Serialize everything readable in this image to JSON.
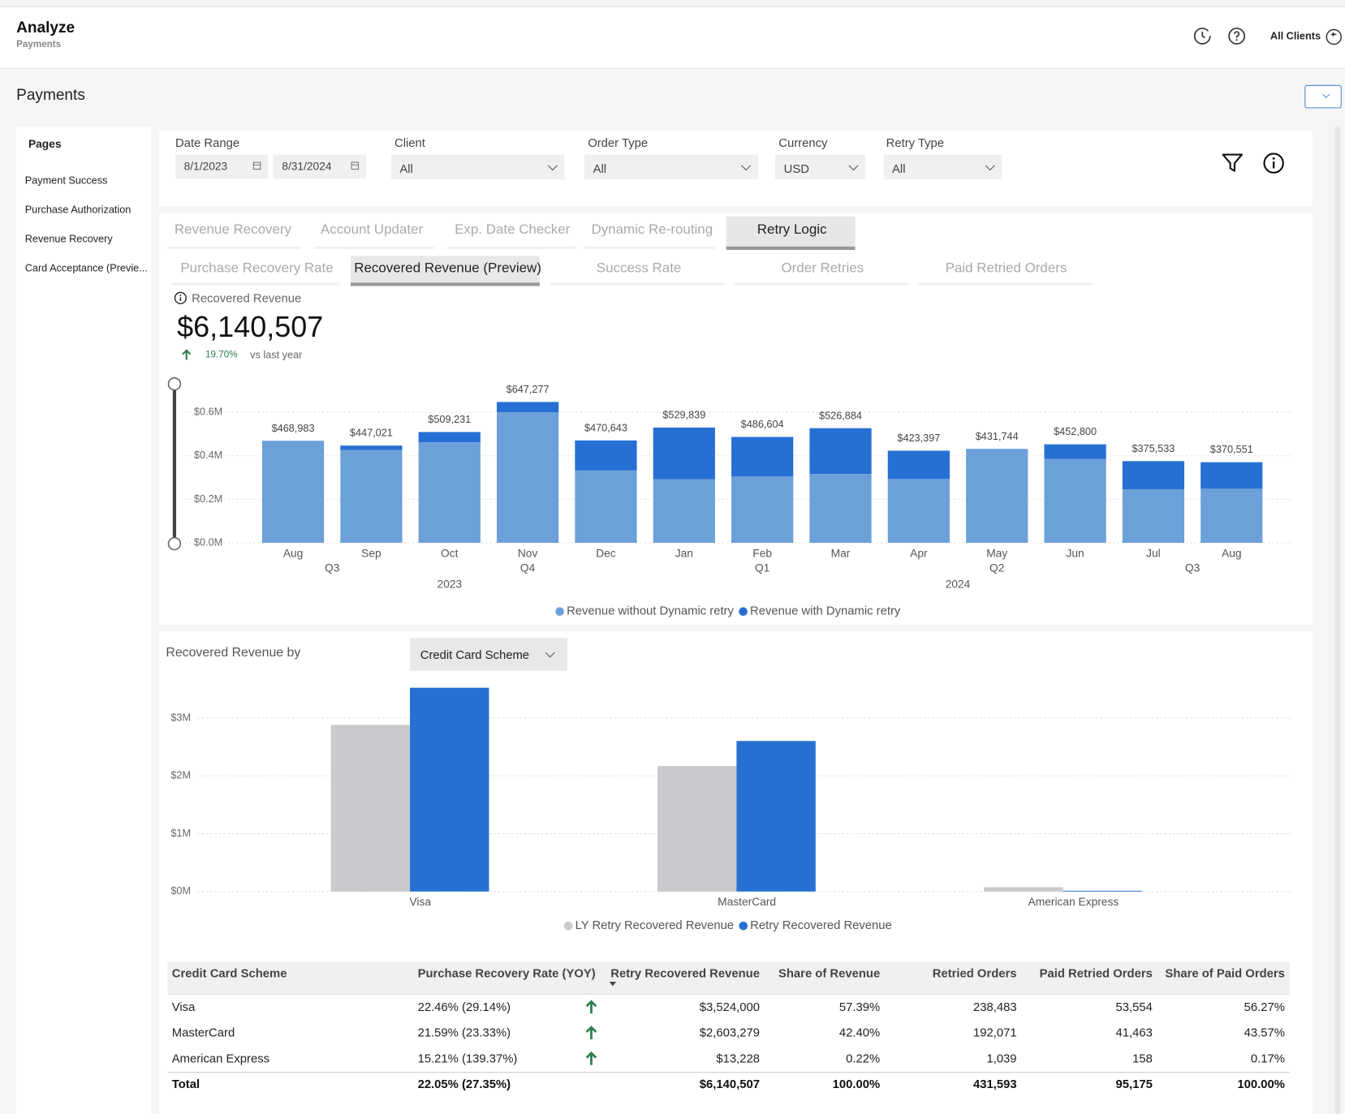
{
  "header": {
    "title": "Analyze",
    "subtitle": "Payments",
    "account": "All Clients"
  },
  "page_title": "Payments",
  "sidebar": {
    "heading": "Pages",
    "items": [
      "Payment Success",
      "Purchase Authorization",
      "Revenue Recovery",
      "Card Acceptance (Previe..."
    ]
  },
  "filters": [
    {
      "label": "Date Range",
      "values": [
        "8/1/2023",
        "8/31/2024"
      ]
    },
    {
      "label": "Client",
      "values": [
        "All"
      ]
    },
    {
      "label": "Order Type",
      "values": [
        "All"
      ]
    },
    {
      "label": "Currency",
      "values": [
        "USD"
      ]
    },
    {
      "label": "Retry Type",
      "values": [
        "All"
      ]
    }
  ],
  "tabs": {
    "items": [
      "Revenue Recovery",
      "Account Updater",
      "Exp. Date Checker",
      "Dynamic Re-routing",
      "Retry Logic"
    ],
    "active": 4
  },
  "subtabs": {
    "items": [
      "Purchase Recovery Rate",
      "Recovered Revenue (Preview)",
      "Success Rate",
      "Order Retries",
      "Paid Retried Orders"
    ],
    "active": 1
  },
  "kpi": {
    "label": "Recovered Revenue",
    "value": "$6,140,507",
    "change": "19.70%",
    "comparison": "vs last year"
  },
  "chart_data": [
    {
      "type": "stacked_bar",
      "categories": [
        "Aug",
        "Sep",
        "Oct",
        "Nov",
        "Dec",
        "Jan",
        "Feb",
        "Mar",
        "Apr",
        "May",
        "Jun",
        "Jul",
        "Aug"
      ],
      "quarters": [
        "Q3",
        "Q4",
        "Q1",
        "Q2",
        "Q3"
      ],
      "years": [
        "2023",
        "2024"
      ],
      "series": [
        {
          "name": "Revenue without Dynamic retry",
          "color": "#6ca0d8",
          "values": [
            468983,
            427021,
            462231,
            600277,
            332643,
            292839,
            304604,
            316884,
            293397,
            431744,
            385800,
            245533,
            248551
          ]
        },
        {
          "name": "Revenue with Dynamic retry",
          "color": "#2670d4",
          "values": [
            0,
            20000,
            47000,
            47000,
            138000,
            237000,
            182000,
            210000,
            130000,
            0,
            67000,
            130000,
            122000
          ]
        }
      ],
      "totals": [
        468983,
        447021,
        509231,
        647277,
        470643,
        529839,
        486604,
        526884,
        423397,
        431744,
        452800,
        375533,
        370551
      ],
      "total_labels": [
        "$468,983",
        "$447,021",
        "$509,231",
        "$647,277",
        "$470,643",
        "$529,839",
        "$486,604",
        "$526,884",
        "$423,397",
        "$431,744",
        "$452,800",
        "$375,533",
        "$370,551"
      ],
      "ylim": [
        0,
        750000
      ],
      "yticks": [
        {
          "value": 0,
          "label": "$0.0M"
        },
        {
          "value": 200000,
          "label": "$0.2M"
        },
        {
          "value": 400000,
          "label": "$0.4M"
        },
        {
          "value": 600000,
          "label": "$0.6M"
        }
      ],
      "grid": true,
      "legend": "bottom"
    },
    {
      "type": "grouped_bar",
      "categories": [
        "Visa",
        "MasterCard",
        "American Express"
      ],
      "series": [
        {
          "name": "LY Retry Recovered Revenue",
          "color": "#c8cacd",
          "values": [
            2880000,
            2170000,
            75000
          ]
        },
        {
          "name": "Retry Recovered Revenue",
          "color": "#2670d4",
          "values": [
            3524000,
            2603279,
            13228
          ]
        }
      ],
      "ylim": [
        0,
        3600000
      ],
      "yticks": [
        {
          "value": 0,
          "label": "$0M"
        },
        {
          "value": 1000000,
          "label": "$1M"
        },
        {
          "value": 2000000,
          "label": "$2M"
        },
        {
          "value": 3000000,
          "label": "$3M"
        }
      ],
      "grid": true,
      "legend": "bottom"
    }
  ],
  "breakdown": {
    "label": "Recovered Revenue by",
    "selector": "Credit Card Scheme"
  },
  "table": {
    "columns": [
      "Credit Card Scheme",
      "Purchase Recovery Rate (YOY)",
      "Retry Recovered Revenue",
      "Share of Revenue",
      "Retried Orders",
      "Paid Retried Orders",
      "Share of Paid Orders"
    ],
    "rows": [
      [
        "Visa",
        "22.46% (29.14%)",
        "$3,524,000",
        "57.39%",
        "238,483",
        "53,554",
        "56.27%"
      ],
      [
        "MasterCard",
        "21.59% (23.33%)",
        "$2,603,279",
        "42.40%",
        "192,071",
        "41,463",
        "43.57%"
      ],
      [
        "American Express",
        "15.21% (139.37%)",
        "$13,228",
        "0.22%",
        "1,039",
        "158",
        "0.17%"
      ]
    ],
    "total": [
      "Total",
      "22.05% (27.35%)",
      "$6,140,507",
      "100.00%",
      "431,593",
      "95,175",
      "100.00%"
    ]
  }
}
